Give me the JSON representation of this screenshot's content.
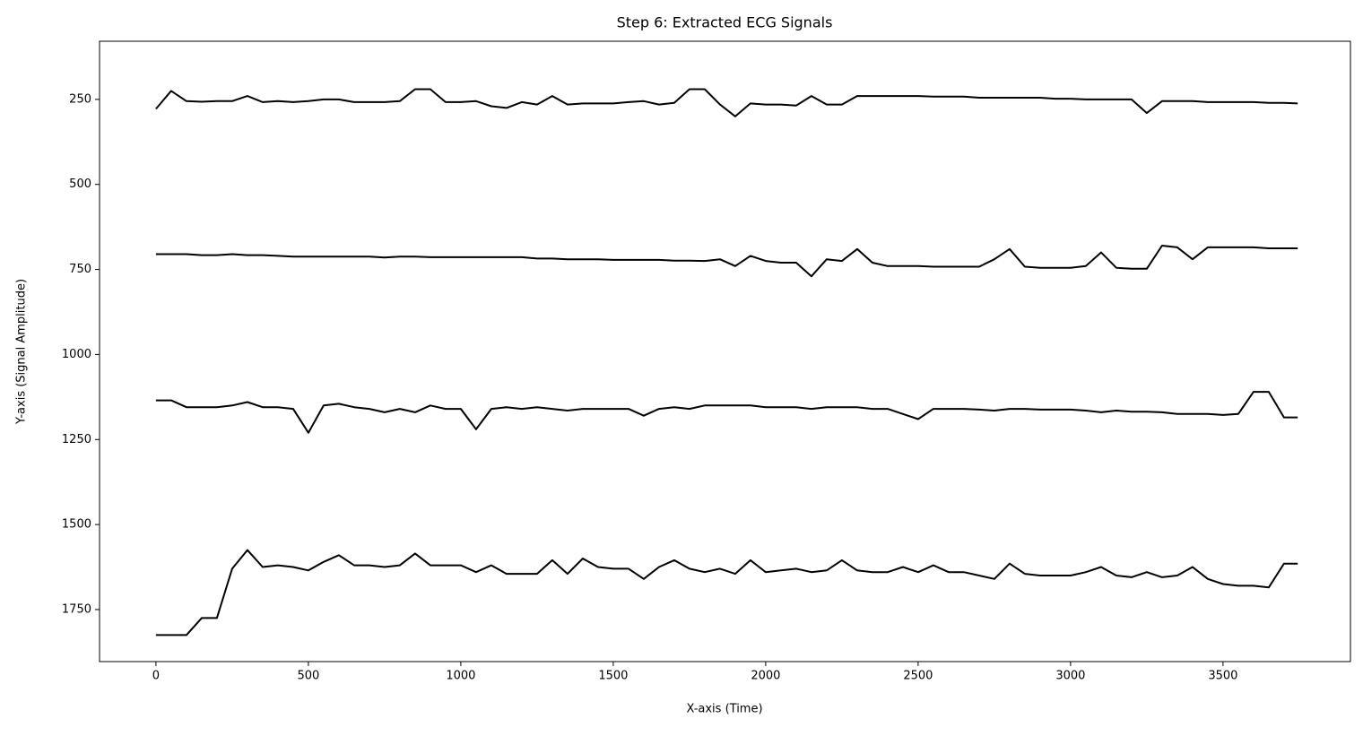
{
  "chart_data": {
    "type": "line",
    "title": "Step 6: Extracted ECG Signals",
    "x_label": "X-axis (Time)",
    "y_label": "Y-axis (Signal Amplitude)",
    "y_inverted": true,
    "xlim": [
      -185,
      3918
    ],
    "ylim": [
      79,
      1903
    ],
    "xticks": [
      0,
      500,
      1000,
      1500,
      2000,
      2500,
      3000,
      3500
    ],
    "yticks": [
      250,
      500,
      750,
      1000,
      1250,
      1500,
      1750
    ],
    "x": [
      0,
      50,
      100,
      150,
      200,
      250,
      300,
      350,
      400,
      450,
      500,
      550,
      600,
      650,
      700,
      750,
      800,
      850,
      900,
      950,
      1000,
      1050,
      1100,
      1150,
      1200,
      1250,
      1300,
      1350,
      1400,
      1450,
      1500,
      1550,
      1600,
      1650,
      1700,
      1750,
      1800,
      1850,
      1900,
      1950,
      2000,
      2050,
      2100,
      2150,
      2200,
      2250,
      2300,
      2350,
      2400,
      2450,
      2500,
      2550,
      2600,
      2650,
      2700,
      2750,
      2800,
      2850,
      2900,
      2950,
      3000,
      3050,
      3100,
      3150,
      3200,
      3250,
      3300,
      3350,
      3400,
      3450,
      3500,
      3550,
      3600,
      3650,
      3700,
      3745
    ],
    "series": [
      {
        "color": "#000000",
        "values": [
          278,
          225,
          255,
          257,
          255,
          255,
          240,
          258,
          255,
          258,
          255,
          250,
          250,
          258,
          258,
          258,
          255,
          220,
          220,
          258,
          258,
          255,
          270,
          275,
          258,
          265,
          240,
          265,
          262,
          262,
          262,
          258,
          255,
          265,
          260,
          220,
          220,
          265,
          300,
          262,
          265,
          265,
          268,
          240,
          265,
          265,
          240,
          240,
          240,
          240,
          240,
          242,
          242,
          242,
          245,
          245,
          245,
          245,
          245,
          248,
          248,
          250,
          250,
          250,
          250,
          290,
          255,
          255,
          255,
          258,
          258,
          258,
          258,
          260,
          260,
          262
        ]
      },
      {
        "color": "#000000",
        "values": [
          705,
          705,
          705,
          708,
          708,
          705,
          708,
          708,
          710,
          712,
          712,
          712,
          712,
          712,
          712,
          715,
          712,
          712,
          714,
          714,
          714,
          714,
          714,
          714,
          714,
          718,
          718,
          720,
          720,
          720,
          722,
          722,
          722,
          722,
          724,
          724,
          725,
          720,
          740,
          710,
          725,
          730,
          730,
          770,
          720,
          725,
          690,
          730,
          740,
          740,
          740,
          742,
          742,
          742,
          742,
          720,
          690,
          742,
          745,
          745,
          745,
          740,
          700,
          745,
          748,
          748,
          680,
          685,
          720,
          685,
          685,
          685,
          685,
          688,
          688,
          688
        ]
      },
      {
        "color": "#000000",
        "values": [
          1135,
          1135,
          1155,
          1155,
          1155,
          1150,
          1140,
          1155,
          1155,
          1160,
          1230,
          1150,
          1145,
          1155,
          1160,
          1170,
          1160,
          1170,
          1150,
          1160,
          1160,
          1220,
          1160,
          1155,
          1160,
          1155,
          1160,
          1165,
          1160,
          1160,
          1160,
          1160,
          1180,
          1160,
          1155,
          1160,
          1150,
          1150,
          1150,
          1150,
          1155,
          1155,
          1155,
          1160,
          1155,
          1155,
          1155,
          1160,
          1160,
          1175,
          1190,
          1160,
          1160,
          1160,
          1162,
          1165,
          1160,
          1160,
          1162,
          1162,
          1162,
          1165,
          1170,
          1165,
          1168,
          1168,
          1170,
          1175,
          1175,
          1175,
          1178,
          1175,
          1110,
          1110,
          1185,
          1185
        ]
      },
      {
        "color": "#000000",
        "values": [
          1825,
          1825,
          1825,
          1775,
          1775,
          1630,
          1575,
          1625,
          1620,
          1625,
          1635,
          1610,
          1590,
          1620,
          1620,
          1625,
          1620,
          1585,
          1620,
          1620,
          1620,
          1640,
          1620,
          1645,
          1645,
          1645,
          1605,
          1645,
          1600,
          1625,
          1630,
          1630,
          1660,
          1625,
          1605,
          1630,
          1640,
          1630,
          1645,
          1605,
          1640,
          1635,
          1630,
          1640,
          1635,
          1605,
          1635,
          1640,
          1640,
          1625,
          1640,
          1620,
          1640,
          1640,
          1650,
          1660,
          1615,
          1645,
          1650,
          1650,
          1650,
          1640,
          1625,
          1650,
          1655,
          1640,
          1655,
          1650,
          1625,
          1660,
          1675,
          1680,
          1680,
          1685,
          1615,
          1615
        ]
      }
    ]
  }
}
